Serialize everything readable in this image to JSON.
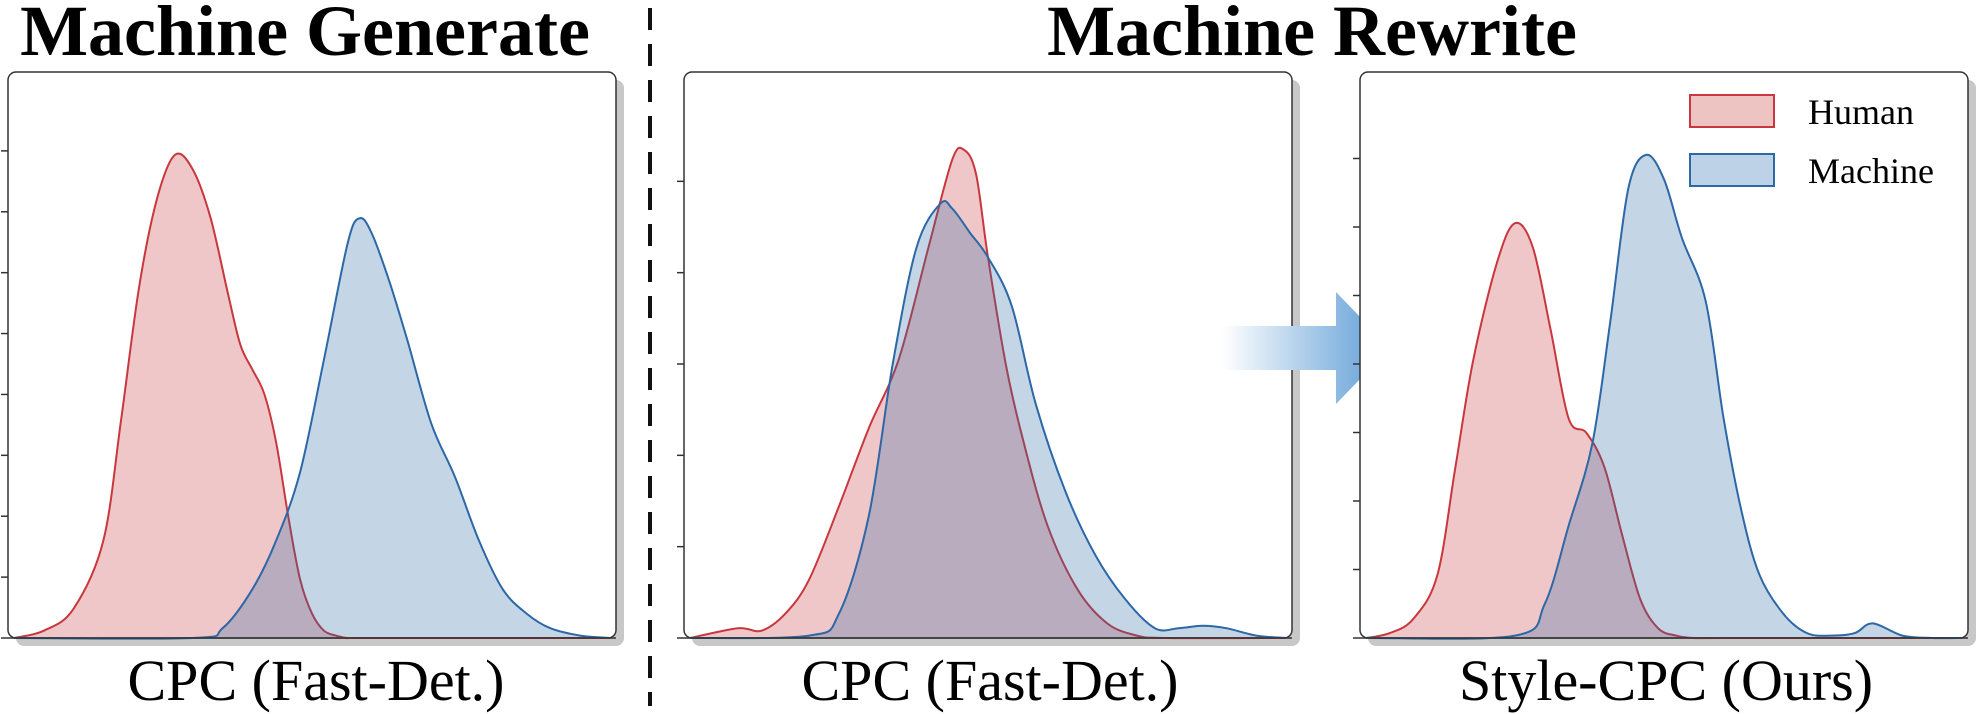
{
  "headings": {
    "left": "Machine Generate",
    "right": "Machine Rewrite"
  },
  "colors": {
    "human_fill": "#eec4c2",
    "human_line": "#c8373d",
    "machine_fill": "#bdd2e6",
    "machine_line": "#2c67a6",
    "overlap_fill": "#b2a6b2",
    "arrow": "#5b9bd5",
    "divider": "#111111"
  },
  "legend": {
    "placement": "top-right of third panel",
    "items": [
      {
        "label": "Human",
        "series": "human"
      },
      {
        "label": "Machine",
        "series": "machine"
      }
    ]
  },
  "chart_data": [
    {
      "type": "area",
      "xlabel": "CPC (Fast-Det.)",
      "ylabel": "",
      "xlim": [
        0,
        1
      ],
      "ylim": [
        0,
        1
      ],
      "grid": false,
      "series": [
        {
          "name": "Human",
          "x": [
            0.0,
            0.05,
            0.1,
            0.15,
            0.18,
            0.21,
            0.24,
            0.27,
            0.3,
            0.33,
            0.36,
            0.38,
            0.4,
            0.42,
            0.44,
            0.46,
            0.48,
            0.5,
            0.52,
            0.54,
            0.56,
            0.6,
            1.0
          ],
          "y": [
            0.0,
            0.015,
            0.06,
            0.2,
            0.45,
            0.72,
            0.9,
            0.99,
            0.96,
            0.86,
            0.7,
            0.6,
            0.55,
            0.5,
            0.4,
            0.25,
            0.12,
            0.05,
            0.015,
            0.005,
            0.0,
            0.0,
            0.0
          ]
        },
        {
          "name": "Machine",
          "x": [
            0.0,
            0.3,
            0.35,
            0.4,
            0.44,
            0.48,
            0.52,
            0.56,
            0.58,
            0.6,
            0.63,
            0.66,
            0.7,
            0.74,
            0.78,
            0.82,
            0.86,
            0.9,
            0.95,
            1.0
          ],
          "y": [
            0.0,
            0.0,
            0.02,
            0.1,
            0.2,
            0.34,
            0.57,
            0.81,
            0.86,
            0.83,
            0.73,
            0.61,
            0.44,
            0.33,
            0.2,
            0.1,
            0.05,
            0.02,
            0.005,
            0.0
          ]
        }
      ]
    },
    {
      "type": "area",
      "xlabel": "CPC (Fast-Det.)",
      "ylabel": "",
      "xlim": [
        0,
        1
      ],
      "ylim": [
        0,
        1
      ],
      "grid": false,
      "series": [
        {
          "name": "Human",
          "x": [
            0.0,
            0.08,
            0.12,
            0.16,
            0.2,
            0.25,
            0.3,
            0.35,
            0.4,
            0.44,
            0.46,
            0.48,
            0.5,
            0.53,
            0.56,
            0.6,
            0.65,
            0.7,
            0.75,
            0.8,
            1.0
          ],
          "y": [
            0.0,
            0.02,
            0.015,
            0.05,
            0.12,
            0.27,
            0.43,
            0.57,
            0.8,
            0.98,
            1.0,
            0.95,
            0.78,
            0.56,
            0.4,
            0.23,
            0.1,
            0.03,
            0.005,
            0.0,
            0.0
          ]
        },
        {
          "name": "Machine",
          "x": [
            0.0,
            0.2,
            0.25,
            0.3,
            0.34,
            0.38,
            0.42,
            0.44,
            0.47,
            0.5,
            0.54,
            0.58,
            0.63,
            0.68,
            0.73,
            0.78,
            0.82,
            0.86,
            0.9,
            0.95,
            1.0
          ],
          "y": [
            0.0,
            0.005,
            0.05,
            0.25,
            0.56,
            0.8,
            0.89,
            0.88,
            0.83,
            0.78,
            0.68,
            0.48,
            0.3,
            0.17,
            0.08,
            0.02,
            0.02,
            0.025,
            0.02,
            0.005,
            0.0
          ]
        }
      ]
    },
    {
      "type": "area",
      "xlabel": "Style-CPC (Ours)",
      "ylabel": "",
      "xlim": [
        0,
        1
      ],
      "ylim": [
        0,
        1
      ],
      "grid": false,
      "series": [
        {
          "name": "Human",
          "x": [
            0.0,
            0.04,
            0.08,
            0.12,
            0.15,
            0.18,
            0.22,
            0.25,
            0.28,
            0.31,
            0.34,
            0.37,
            0.4,
            0.43,
            0.46,
            0.49,
            0.52,
            0.55,
            0.6,
            1.0
          ],
          "y": [
            0.0,
            0.01,
            0.04,
            0.13,
            0.35,
            0.57,
            0.77,
            0.85,
            0.8,
            0.63,
            0.45,
            0.42,
            0.35,
            0.21,
            0.08,
            0.02,
            0.005,
            0.0,
            0.0,
            0.0
          ]
        },
        {
          "name": "Machine",
          "x": [
            0.0,
            0.25,
            0.3,
            0.34,
            0.38,
            0.41,
            0.44,
            0.47,
            0.5,
            0.53,
            0.57,
            0.6,
            0.63,
            0.66,
            0.7,
            0.74,
            0.78,
            0.82,
            0.85,
            0.9,
            0.95,
            1.0
          ],
          "y": [
            0.0,
            0.005,
            0.07,
            0.23,
            0.4,
            0.65,
            0.92,
            0.99,
            0.94,
            0.82,
            0.69,
            0.45,
            0.26,
            0.13,
            0.05,
            0.01,
            0.005,
            0.01,
            0.03,
            0.005,
            0.0,
            0.0
          ]
        }
      ]
    }
  ]
}
